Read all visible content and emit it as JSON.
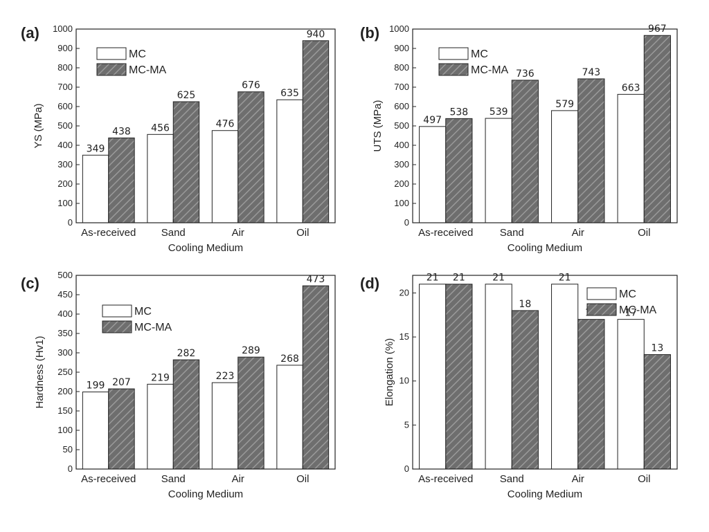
{
  "colors": {
    "bar_mc": "#ffffff",
    "bar_mcma": "#6e6e6e",
    "hatch": "#9a9a9a",
    "axis": "#222222"
  },
  "chart_data": [
    {
      "type": "bar",
      "panel": "(a)",
      "categories": [
        "As-received",
        "Sand",
        "Air",
        "Oil"
      ],
      "series": [
        {
          "name": "MC",
          "values": [
            349,
            456,
            476,
            635
          ]
        },
        {
          "name": "MC-MA",
          "values": [
            438,
            625,
            676,
            940
          ]
        }
      ],
      "value_labels": [
        [
          "349",
          "456",
          "476",
          "635"
        ],
        [
          "438",
          "625",
          "676",
          "940"
        ]
      ],
      "xlabel": "Cooling Medium",
      "ylabel": "YS (MPa)",
      "ylim": [
        0,
        1000
      ],
      "yticks": [
        0,
        100,
        200,
        300,
        400,
        500,
        600,
        700,
        800,
        900,
        1000
      ],
      "ytick_labels": [
        "0",
        "100",
        "200",
        "300",
        "400",
        "500",
        "600",
        "700",
        "800",
        "900",
        "1000"
      ],
      "legend": "top-left",
      "grid": false
    },
    {
      "type": "bar",
      "panel": "(b)",
      "categories": [
        "As-received",
        "Sand",
        "Air",
        "Oil"
      ],
      "series": [
        {
          "name": "MC",
          "values": [
            497,
            539,
            579,
            663
          ]
        },
        {
          "name": "MC-MA",
          "values": [
            538,
            736,
            743,
            967
          ]
        }
      ],
      "value_labels": [
        [
          "497",
          "539",
          "579",
          "663"
        ],
        [
          "538",
          "736",
          "743",
          "967"
        ]
      ],
      "xlabel": "Cooling Medium",
      "ylabel": "UTS (MPa)",
      "ylim": [
        0,
        1000
      ],
      "yticks": [
        0,
        100,
        200,
        300,
        400,
        500,
        600,
        700,
        800,
        900,
        1000
      ],
      "ytick_labels": [
        "0",
        "100",
        "200",
        "300",
        "400",
        "500",
        "600",
        "700",
        "800",
        "900",
        "1000"
      ],
      "legend": "top-left",
      "grid": false
    },
    {
      "type": "bar",
      "panel": "(c)",
      "categories": [
        "As-received",
        "Sand",
        "Air",
        "Oil"
      ],
      "series": [
        {
          "name": "MC",
          "values": [
            199,
            219,
            223,
            268
          ]
        },
        {
          "name": "MC-MA",
          "values": [
            207,
            282,
            289,
            473
          ]
        }
      ],
      "value_labels": [
        [
          "199",
          "219",
          "223",
          "268"
        ],
        [
          "207",
          "282",
          "289",
          "473"
        ]
      ],
      "xlabel": "Cooling Medium",
      "ylabel": "Hardness (Hv1)",
      "ylim": [
        0,
        500
      ],
      "yticks": [
        0,
        50,
        100,
        150,
        200,
        250,
        300,
        350,
        400,
        450,
        500
      ],
      "ytick_labels": [
        "0",
        "50",
        "100",
        "150",
        "200",
        "250",
        "300",
        "350",
        "400",
        "450",
        "500"
      ],
      "legend": "top-left",
      "grid": false
    },
    {
      "type": "bar",
      "panel": "(d)",
      "categories": [
        "As-received",
        "Sand",
        "Air",
        "Oil"
      ],
      "series": [
        {
          "name": "MC",
          "values": [
            21,
            21,
            21,
            17
          ]
        },
        {
          "name": "MC-MA",
          "values": [
            21,
            18,
            17,
            13
          ]
        }
      ],
      "value_labels": [
        [
          "21",
          "21",
          "21",
          "17"
        ],
        [
          "21",
          "18",
          "17",
          "13"
        ]
      ],
      "xlabel": "Cooling Medium",
      "ylabel": "Elongation (%)",
      "ylim": [
        0,
        22
      ],
      "yticks": [
        0,
        5,
        10,
        15,
        20
      ],
      "ytick_labels": [
        "0",
        "5",
        "10",
        "15",
        "20"
      ],
      "legend": "top-right",
      "grid": false
    }
  ]
}
